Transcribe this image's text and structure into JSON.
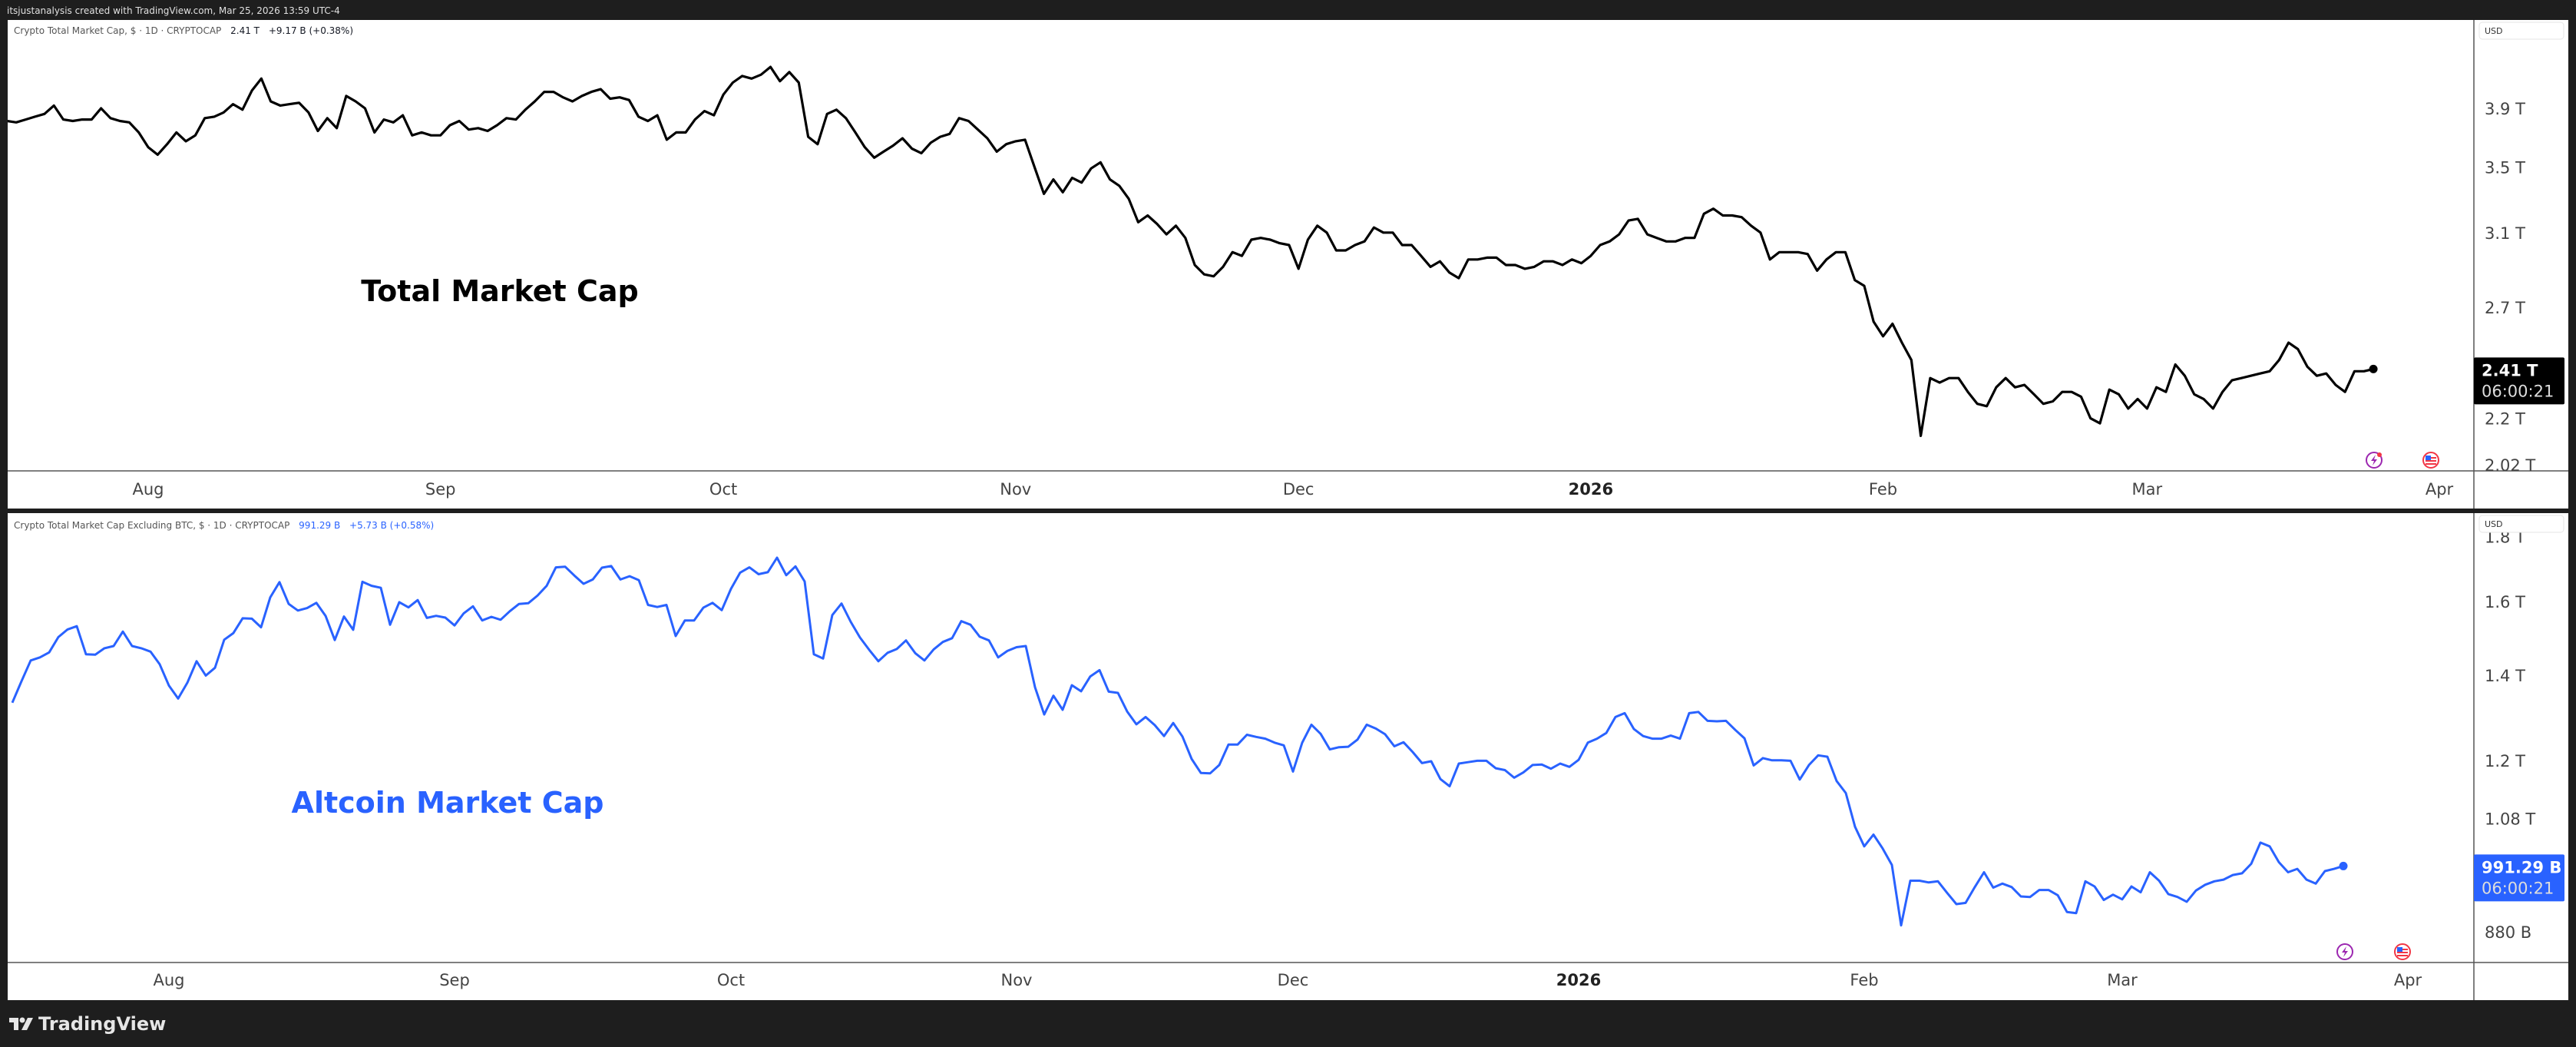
{
  "header": {
    "attribution": "itsjustanalysis created with TradingView.com, Mar 25, 2026 13:59 UTC-4"
  },
  "footer": {
    "logo_text": "TradingView"
  },
  "chart_data": [
    {
      "type": "line",
      "title": "Crypto Total Market Cap, $ · 1D · CRYPTOCAP",
      "last_value": "2.41 T",
      "change": "+9.17 B (+0.38%)",
      "annotation": "Total Market Cap",
      "currency": "USD",
      "countdown": "06:00:21",
      "y_scale": "log",
      "y_unit": "T (USD trillions)",
      "line_color": "#000000",
      "label_box_color": "#000000",
      "grid": false,
      "x_ticks": [
        {
          "date": "2025-08-01",
          "label": "Aug"
        },
        {
          "date": "2025-09-01",
          "label": "Sep"
        },
        {
          "date": "2025-10-01",
          "label": "Oct"
        },
        {
          "date": "2025-11-01",
          "label": "Nov"
        },
        {
          "date": "2025-12-01",
          "label": "Dec"
        },
        {
          "date": "2026-01-01",
          "label": "2026"
        },
        {
          "date": "2026-02-01",
          "label": "Feb"
        },
        {
          "date": "2026-03-01",
          "label": "Mar"
        },
        {
          "date": "2026-04-01",
          "label": "Apr"
        }
      ],
      "y_ticks": [
        {
          "value": 3.9,
          "label": "3.9 T"
        },
        {
          "value": 3.5,
          "label": "3.5 T"
        },
        {
          "value": 3.1,
          "label": "3.1 T"
        },
        {
          "value": 2.7,
          "label": "2.7 T"
        },
        {
          "value": 2.2,
          "label": "2.2 T"
        },
        {
          "value": 2.02,
          "label": "2.02 T"
        }
      ],
      "series": [
        {
          "daily": [
            {
              "month": "2025-07",
              "first_day": 17,
              "values": [
                3.81,
                3.8,
                3.82,
                3.84,
                3.86,
                3.92,
                3.82,
                3.81,
                3.82,
                3.82,
                3.9,
                3.83,
                3.81,
                3.8,
                3.73
              ]
            },
            {
              "month": "2025-08",
              "first_day": 1,
              "values": [
                3.63,
                3.58,
                3.65,
                3.73,
                3.67,
                3.71,
                3.83,
                3.84,
                3.87,
                3.93,
                3.89,
                4.03,
                4.12,
                3.95,
                3.92,
                3.93,
                3.94,
                3.87,
                3.74,
                3.83,
                3.76,
                3.99,
                3.95,
                3.9,
                3.73,
                3.82,
                3.8,
                3.85,
                3.71,
                3.73,
                3.71
              ]
            },
            {
              "month": "2025-09",
              "first_day": 1,
              "values": [
                3.71,
                3.78,
                3.81,
                3.75,
                3.76,
                3.74,
                3.78,
                3.83,
                3.82,
                3.89,
                3.95,
                4.02,
                4.02,
                3.98,
                3.95,
                3.99,
                4.02,
                4.04,
                3.97,
                3.98,
                3.96,
                3.84,
                3.81,
                3.85,
                3.68,
                3.73,
                3.73,
                3.82,
                3.88,
                3.85
              ]
            },
            {
              "month": "2025-10",
              "first_day": 1,
              "values": [
                4.0,
                4.09,
                4.14,
                4.12,
                4.15,
                4.21,
                4.1,
                4.17,
                4.09,
                3.7,
                3.65,
                3.86,
                3.89,
                3.83,
                3.73,
                3.63,
                3.56,
                3.6,
                3.64,
                3.69,
                3.62,
                3.59,
                3.66,
                3.7,
                3.72,
                3.83,
                3.81,
                3.75,
                3.69,
                3.6,
                3.65
              ]
            },
            {
              "month": "2025-11",
              "first_day": 1,
              "values": [
                3.67,
                3.68,
                3.5,
                3.33,
                3.42,
                3.34,
                3.43,
                3.4,
                3.49,
                3.53,
                3.42,
                3.38,
                3.3,
                3.16,
                3.2,
                3.15,
                3.09,
                3.14,
                3.07,
                2.92,
                2.87,
                2.86,
                2.91,
                2.99,
                2.97,
                3.06,
                3.07,
                3.06,
                3.04,
                3.03
              ]
            },
            {
              "month": "2025-12",
              "first_day": 1,
              "values": [
                2.9,
                3.06,
                3.14,
                3.1,
                3.0,
                3.0,
                3.03,
                3.05,
                3.13,
                3.1,
                3.1,
                3.03,
                3.03,
                2.97,
                2.91,
                2.94,
                2.88,
                2.85,
                2.95,
                2.95,
                2.96,
                2.96,
                2.92,
                2.92,
                2.9,
                2.91,
                2.94,
                2.94,
                2.92,
                2.95,
                2.93
              ]
            },
            {
              "month": "2026-01",
              "first_day": 1,
              "values": [
                2.97,
                3.03,
                3.05,
                3.09,
                3.17,
                3.18,
                3.09,
                3.07,
                3.05,
                3.05,
                3.07,
                3.07,
                3.21,
                3.24,
                3.2,
                3.2,
                3.19,
                3.14,
                3.1,
                2.95,
                2.99,
                2.99,
                2.99,
                2.98,
                2.89,
                2.95,
                2.99,
                2.99,
                2.84,
                2.81,
                2.63
              ]
            },
            {
              "month": "2026-02",
              "first_day": 1,
              "values": [
                2.56,
                2.62,
                2.53,
                2.45,
                2.13,
                2.37,
                2.35,
                2.37,
                2.37,
                2.31,
                2.26,
                2.25,
                2.33,
                2.37,
                2.33,
                2.34,
                2.3,
                2.26,
                2.27,
                2.31,
                2.31,
                2.29,
                2.2,
                2.18,
                2.32,
                2.3,
                2.24,
                2.28
              ]
            },
            {
              "month": "2026-03",
              "first_day": 1,
              "values": [
                2.24,
                2.33,
                2.31,
                2.43,
                2.38,
                2.3,
                2.28,
                2.24,
                2.31,
                2.36,
                2.37,
                2.38,
                2.39,
                2.4,
                2.45,
                2.53,
                2.5,
                2.42,
                2.38,
                2.39,
                2.34,
                2.31,
                2.4,
                2.4,
                2.41
              ]
            }
          ]
        }
      ]
    },
    {
      "type": "line",
      "title": "Crypto Total Market Cap Excluding BTC, $ · 1D · CRYPTOCAP",
      "last_value": "991.29 B",
      "change": "+5.73 B (+0.58%)",
      "annotation": "Altcoin Market Cap",
      "currency": "USD",
      "countdown": "06:00:21",
      "y_scale": "log",
      "y_unit": "T (USD trillions)",
      "line_color": "#2962ff",
      "label_box_color": "#2962ff",
      "grid": false,
      "x_ticks": [
        {
          "date": "2025-08-01",
          "label": "Aug"
        },
        {
          "date": "2025-09-01",
          "label": "Sep"
        },
        {
          "date": "2025-10-01",
          "label": "Oct"
        },
        {
          "date": "2025-11-01",
          "label": "Nov"
        },
        {
          "date": "2025-12-01",
          "label": "Dec"
        },
        {
          "date": "2026-01-01",
          "label": "2026"
        },
        {
          "date": "2026-02-01",
          "label": "Feb"
        },
        {
          "date": "2026-03-01",
          "label": "Mar"
        },
        {
          "date": "2026-04-01",
          "label": "Apr"
        }
      ],
      "y_ticks": [
        {
          "value": 1.8,
          "label": "1.8 T"
        },
        {
          "value": 1.6,
          "label": "1.6 T"
        },
        {
          "value": 1.4,
          "label": "1.4 T"
        },
        {
          "value": 1.2,
          "label": "1.2 T"
        },
        {
          "value": 1.08,
          "label": "1.08 T"
        },
        {
          "value": 0.88,
          "label": "880 B"
        }
      ],
      "series": [
        {
          "daily": [
            {
              "month": "2025-07",
              "first_day": 15,
              "values": [
                1.332,
                1.385,
                1.438,
                1.446,
                1.459,
                1.5,
                1.521,
                1.53,
                1.454,
                1.453,
                1.47,
                1.476,
                1.515,
                1.476,
                1.47,
                1.461,
                1.428
              ]
            },
            {
              "month": "2025-08",
              "first_day": 1,
              "values": [
                1.374,
                1.342,
                1.381,
                1.436,
                1.399,
                1.419,
                1.493,
                1.511,
                1.552,
                1.551,
                1.527,
                1.612,
                1.657,
                1.593,
                1.574,
                1.581,
                1.596,
                1.559,
                1.492,
                1.557,
                1.52,
                1.658,
                1.646,
                1.64,
                1.534,
                1.598,
                1.583,
                1.604,
                1.553,
                1.559,
                1.554
              ]
            },
            {
              "month": "2025-09",
              "first_day": 1,
              "values": [
                1.532,
                1.566,
                1.586,
                1.546,
                1.556,
                1.548,
                1.572,
                1.593,
                1.595,
                1.617,
                1.646,
                1.702,
                1.704,
                1.677,
                1.652,
                1.665,
                1.701,
                1.706,
                1.665,
                1.675,
                1.663,
                1.59,
                1.584,
                1.59,
                1.503,
                1.546,
                1.546,
                1.582,
                1.596,
                1.575
              ]
            },
            {
              "month": "2025-10",
              "first_day": 1,
              "values": [
                1.637,
                1.686,
                1.702,
                1.681,
                1.687,
                1.732,
                1.678,
                1.705,
                1.659,
                1.454,
                1.443,
                1.561,
                1.594,
                1.542,
                1.499,
                1.466,
                1.436,
                1.458,
                1.468,
                1.491,
                1.457,
                1.438,
                1.467,
                1.487,
                1.497,
                1.544,
                1.534,
                1.501,
                1.491,
                1.446,
                1.463
              ]
            },
            {
              "month": "2025-11",
              "first_day": 1,
              "values": [
                1.473,
                1.476,
                1.37,
                1.304,
                1.349,
                1.315,
                1.375,
                1.36,
                1.397,
                1.413,
                1.359,
                1.356,
                1.311,
                1.281,
                1.298,
                1.279,
                1.254,
                1.284,
                1.253,
                1.203,
                1.173,
                1.172,
                1.19,
                1.235,
                1.235,
                1.257,
                1.252,
                1.248,
                1.239,
                1.233
              ]
            },
            {
              "month": "2025-12",
              "first_day": 1,
              "values": [
                1.176,
                1.239,
                1.28,
                1.259,
                1.224,
                1.229,
                1.23,
                1.246,
                1.28,
                1.271,
                1.258,
                1.231,
                1.24,
                1.218,
                1.194,
                1.198,
                1.16,
                1.145,
                1.193,
                1.196,
                1.199,
                1.199,
                1.183,
                1.179,
                1.163,
                1.174,
                1.19,
                1.191,
                1.182,
                1.193,
                1.186
              ]
            },
            {
              "month": "2026-01",
              "first_day": 1,
              "values": [
                1.201,
                1.239,
                1.248,
                1.261,
                1.298,
                1.307,
                1.27,
                1.254,
                1.248,
                1.248,
                1.255,
                1.248,
                1.307,
                1.31,
                1.289,
                1.288,
                1.289,
                1.268,
                1.249,
                1.189,
                1.205,
                1.2,
                1.2,
                1.199,
                1.159,
                1.19,
                1.211,
                1.208,
                1.156,
                1.131,
                1.064
              ]
            },
            {
              "month": "2026-02",
              "first_day": 1,
              "values": [
                1.027,
                1.049,
                1.023,
                0.993,
                0.89,
                0.965,
                0.965,
                0.962,
                0.964,
                0.944,
                0.925,
                0.927,
                0.954,
                0.98,
                0.953,
                0.96,
                0.954,
                0.938,
                0.937,
                0.949,
                0.949,
                0.94,
                0.912,
                0.91,
                0.964,
                0.955,
                0.932,
                0.941
              ]
            },
            {
              "month": "2026-03",
              "first_day": 1,
              "values": [
                0.933,
                0.955,
                0.945,
                0.98,
                0.965,
                0.942,
                0.937,
                0.929,
                0.948,
                0.958,
                0.964,
                0.967,
                0.975,
                0.978,
                0.995,
                1.034,
                1.027,
                0.998,
                0.98,
                0.986,
                0.967,
                0.96,
                0.982,
                0.986,
                0.991
              ]
            }
          ]
        }
      ]
    }
  ]
}
